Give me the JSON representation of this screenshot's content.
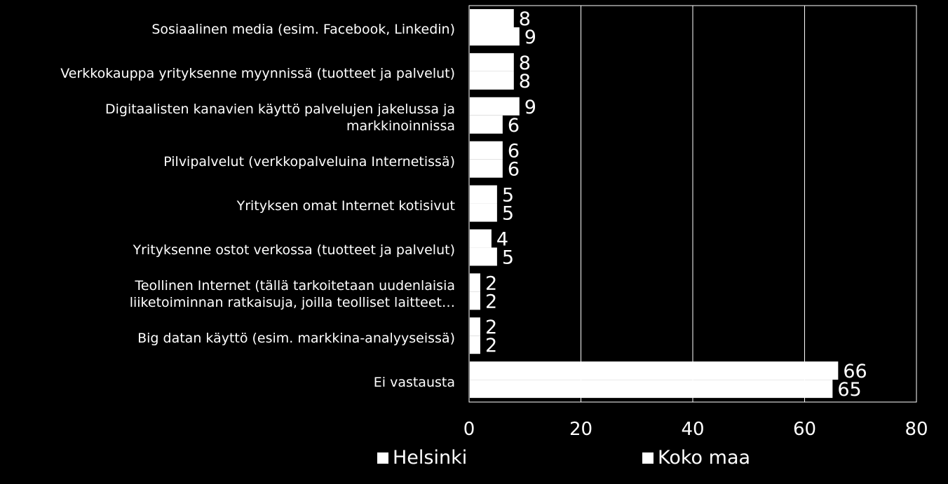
{
  "chart_data": {
    "type": "bar",
    "orientation": "horizontal",
    "categories": [
      "Sosiaalinen media (esim. Facebook, Linkedin)",
      "Verkkokauppa yrityksenne myynnissä (tuotteet ja palvelut)",
      "Digitaalisten kanavien käyttö palvelujen jakelussa ja\nmarkkinoinnissa",
      "Pilvipalvelut  (verkkopalveluina Internetissä)",
      "Yrityksen omat Internet kotisivut",
      "Yrityksenne ostot verkossa (tuotteet ja palvelut)",
      "Teollinen Internet (tällä tarkoitetaan uudenlaisia\nliiketoiminnan ratkaisuja, joilla teolliset laitteet…",
      "Big datan käyttö (esim. markkina-analyyseissä)",
      "Ei vastausta"
    ],
    "series": [
      {
        "name": "Helsinki",
        "values": [
          8,
          8,
          9,
          6,
          5,
          4,
          2,
          2,
          66
        ]
      },
      {
        "name": "Koko maa",
        "values": [
          9,
          8,
          6,
          6,
          5,
          5,
          2,
          2,
          65
        ]
      }
    ],
    "xlim": [
      0,
      80
    ],
    "xticks": [
      "0",
      "20",
      "40",
      "60",
      "80"
    ],
    "grid": true,
    "legend_position": "bottom",
    "bar_color": "#ffffff",
    "background": "#000000"
  }
}
